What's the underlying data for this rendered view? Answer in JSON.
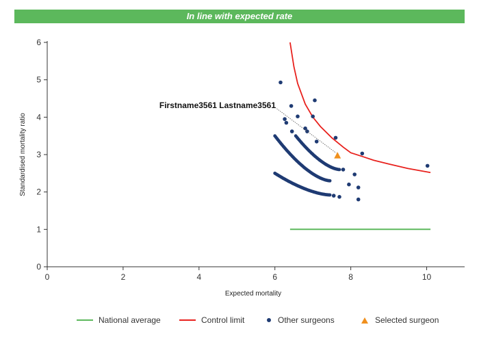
{
  "banner": {
    "text": "In line with expected rate",
    "color": "#5cb85c"
  },
  "chart_data": {
    "type": "scatter",
    "xlabel": "Expected mortality",
    "ylabel": "Standardised mortality ratio",
    "xlim": [
      0,
      11
    ],
    "ylim": [
      0,
      6
    ],
    "x_ticks": [
      0,
      2,
      4,
      6,
      8,
      10
    ],
    "y_ticks": [
      0,
      1,
      2,
      3,
      4,
      5,
      6
    ],
    "grid": false,
    "legend_position": "bottom",
    "series": [
      {
        "name": "National average",
        "kind": "line",
        "color": "#5cb85c",
        "x": [
          6.4,
          10.1
        ],
        "y": [
          1.0,
          1.0
        ]
      },
      {
        "name": "Control limit",
        "kind": "line",
        "color": "#e8211d",
        "x": [
          6.4,
          6.5,
          6.6,
          6.8,
          7.0,
          7.2,
          7.5,
          7.8,
          8.0,
          8.3,
          8.6,
          9.0,
          9.5,
          10.1
        ],
        "y": [
          6.0,
          5.35,
          4.9,
          4.35,
          4.0,
          3.75,
          3.45,
          3.2,
          3.05,
          2.95,
          2.85,
          2.75,
          2.63,
          2.52
        ]
      },
      {
        "name": "Other surgeons",
        "kind": "scatter",
        "color": "#1f3b73",
        "points": [
          [
            6.15,
            4.93
          ],
          [
            6.43,
            4.3
          ],
          [
            6.6,
            4.02
          ],
          [
            7.05,
            4.45
          ],
          [
            7.0,
            4.02
          ],
          [
            6.26,
            3.95
          ],
          [
            6.3,
            3.85
          ],
          [
            6.45,
            3.62
          ],
          [
            6.8,
            3.7
          ],
          [
            6.85,
            3.62
          ],
          [
            7.1,
            3.35
          ],
          [
            7.6,
            3.45
          ],
          [
            8.3,
            3.03
          ],
          [
            10.02,
            2.7
          ],
          [
            7.8,
            2.6
          ],
          [
            8.1,
            2.47
          ],
          [
            7.95,
            2.2
          ],
          [
            8.2,
            2.12
          ],
          [
            7.55,
            1.9
          ],
          [
            7.7,
            1.87
          ],
          [
            8.2,
            1.8
          ]
        ]
      },
      {
        "name": "Selected surgeon",
        "kind": "scatter",
        "color": "#f0901e",
        "points": [
          [
            7.65,
            2.97
          ]
        ]
      }
    ],
    "annotations": [
      {
        "text": "Firstname3561 Lastname3561",
        "points_to": [
          7.65,
          2.97
        ]
      }
    ]
  }
}
